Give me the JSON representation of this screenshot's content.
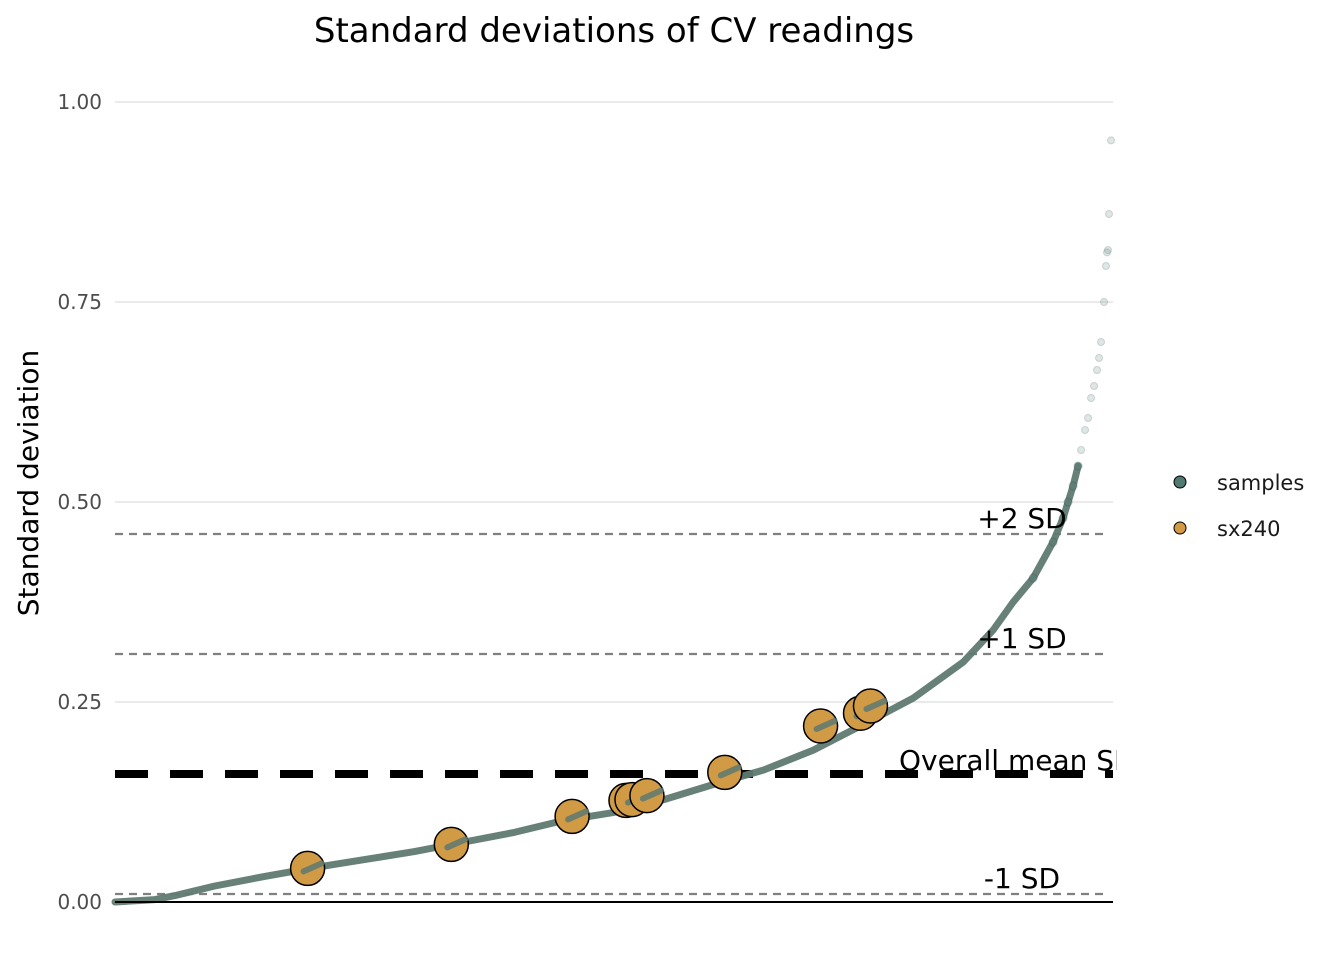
{
  "chart_data": {
    "type": "scatter",
    "title": "Standard deviations of CV readings",
    "xlabel": "",
    "ylabel": "Standard deviation",
    "ylim": [
      0,
      1.0
    ],
    "yticks": [
      {
        "value": 0.0,
        "label": "0.00"
      },
      {
        "value": 0.25,
        "label": "0.25"
      },
      {
        "value": 0.5,
        "label": "0.50"
      },
      {
        "value": 0.75,
        "label": "0.75"
      },
      {
        "value": 1.0,
        "label": "1.00"
      }
    ],
    "grid": "horizontal major",
    "legend": "right",
    "colors": {
      "samples": "#4f7a72",
      "samples_curve": "#5f7a72",
      "sx240": "#d19a44",
      "gridline": "#dedede",
      "reference": "#808080",
      "mean": "#000000"
    },
    "reference_lines": [
      {
        "label": "+2 SD",
        "value": 0.46,
        "style": "dashed-thin"
      },
      {
        "label": "+1 SD",
        "value": 0.31,
        "style": "dashed-thin"
      },
      {
        "label": "Overall mean SD",
        "value": 0.16,
        "style": "dashed-thick"
      },
      {
        "label": "-1 SD",
        "value": 0.01,
        "style": "dashed-thin"
      }
    ],
    "series": [
      {
        "name": "samples",
        "n_points": 1000,
        "sorted_curve": [
          [
            0,
            0.0
          ],
          [
            40,
            0.003
          ],
          [
            60,
            0.008
          ],
          [
            100,
            0.02
          ],
          [
            150,
            0.032
          ],
          [
            200,
            0.043
          ],
          [
            250,
            0.053
          ],
          [
            300,
            0.063
          ],
          [
            350,
            0.075
          ],
          [
            400,
            0.087
          ],
          [
            450,
            0.102
          ],
          [
            500,
            0.112
          ],
          [
            550,
            0.128
          ],
          [
            600,
            0.147
          ],
          [
            650,
            0.165
          ],
          [
            700,
            0.19
          ],
          [
            750,
            0.222
          ],
          [
            800,
            0.255
          ],
          [
            850,
            0.3
          ],
          [
            880,
            0.34
          ],
          [
            900,
            0.375
          ],
          [
            920,
            0.405
          ],
          [
            940,
            0.45
          ],
          [
            950,
            0.48
          ],
          [
            955,
            0.5
          ],
          [
            960,
            0.52
          ],
          [
            965,
            0.545
          ]
        ],
        "tail_points": [
          [
            968,
            0.565
          ],
          [
            972,
            0.59
          ],
          [
            975,
            0.605
          ],
          [
            978,
            0.63
          ],
          [
            981,
            0.645
          ],
          [
            984,
            0.665
          ],
          [
            986,
            0.68
          ],
          [
            988,
            0.7
          ],
          [
            991,
            0.75
          ],
          [
            993,
            0.795
          ],
          [
            994,
            0.812
          ],
          [
            995,
            0.815
          ],
          [
            996,
            0.86
          ],
          [
            998,
            0.952
          ]
        ]
      },
      {
        "name": "sx240",
        "points": [
          [
            193,
            0.042
          ],
          [
            337,
            0.072
          ],
          [
            458,
            0.107
          ],
          [
            512,
            0.127
          ],
          [
            518,
            0.128
          ],
          [
            533,
            0.133
          ],
          [
            611,
            0.162
          ],
          [
            707,
            0.22
          ],
          [
            747,
            0.236
          ],
          [
            757,
            0.245
          ]
        ]
      }
    ],
    "legend_entries": [
      {
        "label": "samples",
        "color": "#4f7a72"
      },
      {
        "label": "sx240",
        "color": "#d19a44"
      }
    ]
  }
}
